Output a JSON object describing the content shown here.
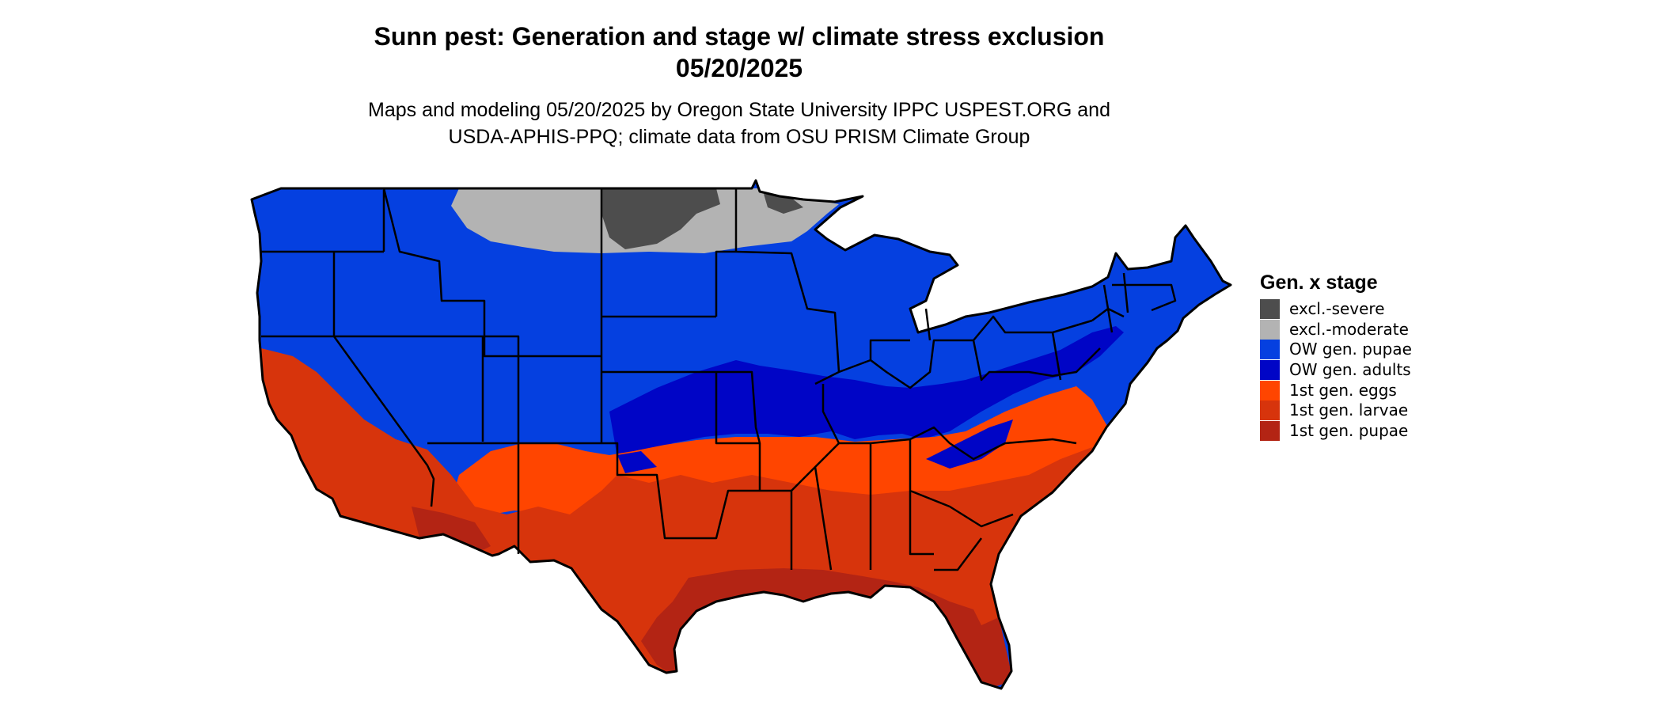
{
  "title_line1": "Sunn pest: Generation and stage w/ climate stress exclusion",
  "title_line2": "05/20/2025",
  "subtitle_line1": "Maps and modeling 05/20/2025 by Oregon State University IPPC USPEST.ORG and",
  "subtitle_line2": "USDA-APHIS-PPQ; climate data from OSU PRISM Climate Group",
  "legend": {
    "title": "Gen. x stage",
    "items": [
      {
        "label": "excl.-severe",
        "color": "#4d4d4d"
      },
      {
        "label": "excl.-moderate",
        "color": "#b3b3b3"
      },
      {
        "label": "OW gen. pupae",
        "color": "#0540e0"
      },
      {
        "label": "OW gen. adults",
        "color": "#0005c6"
      },
      {
        "label": "1st gen. eggs",
        "color": "#ff4500"
      },
      {
        "label": "1st gen. larvae",
        "color": "#d7340c"
      },
      {
        "label": "1st gen. pupae",
        "color": "#b32414"
      }
    ]
  }
}
